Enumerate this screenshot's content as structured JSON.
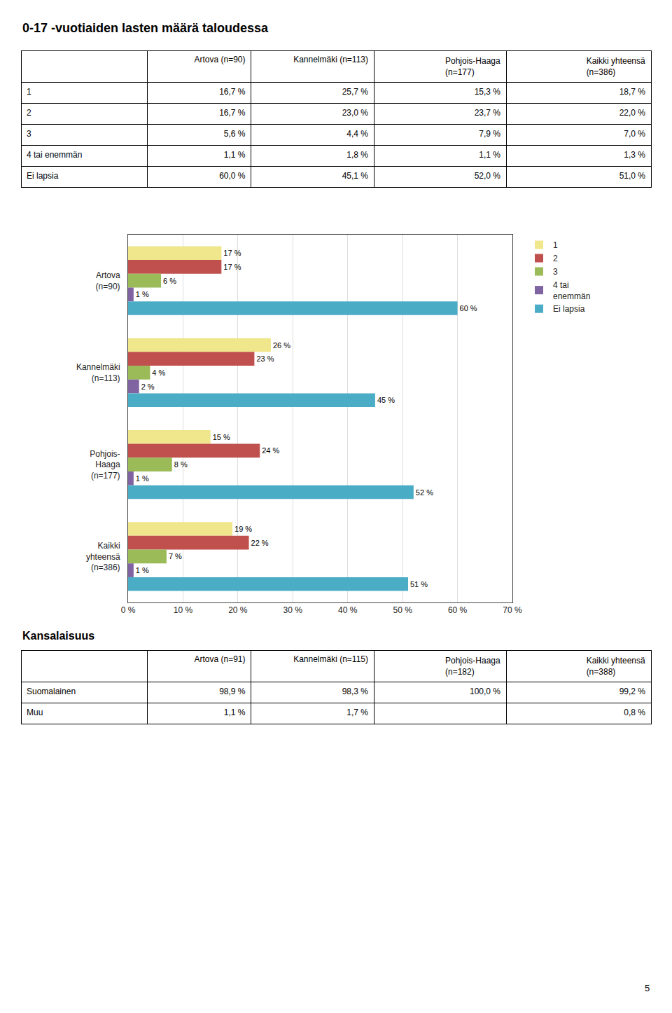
{
  "chart_data": [
    {
      "type": "table",
      "title": "0-17 -vuotiaiden lasten määrä taloudessa",
      "categories": [
        "1",
        "2",
        "3",
        "4 tai enemmän",
        "Ei lapsia"
      ],
      "series": [
        {
          "name": "Artova (n=90)",
          "values": [
            16.7,
            16.7,
            5.6,
            1.1,
            60.0
          ],
          "value_labels": [
            "16,7 %",
            "16,7 %",
            "5,6 %",
            "1,1 %",
            "60,0 %"
          ]
        },
        {
          "name": "Kannelmäki (n=113)",
          "values": [
            25.7,
            23.0,
            4.4,
            1.8,
            45.1
          ],
          "value_labels": [
            "25,7 %",
            "23,0 %",
            "4,4 %",
            "1,8 %",
            "45,1 %"
          ]
        },
        {
          "name": "Pohjois-Haaga\n(n=177)",
          "values": [
            15.3,
            23.7,
            7.9,
            1.1,
            52.0
          ],
          "value_labels": [
            "15,3 %",
            "23,7 %",
            "7,9 %",
            "1,1 %",
            "52,0 %"
          ]
        },
        {
          "name": "Kaikki yhteensä\n(n=386)",
          "values": [
            18.7,
            22.0,
            7.0,
            1.3,
            51.0
          ],
          "value_labels": [
            "18,7 %",
            "22,0 %",
            "7,0 %",
            "1,3 %",
            "51,0 %"
          ]
        }
      ]
    },
    {
      "type": "bar",
      "orientation": "horizontal",
      "categories": [
        "Artova\n(n=90)",
        "Kannelmäki\n(n=113)",
        "Pohjois-\nHaaga\n(n=177)",
        "Kaikki\nyhteensä\n(n=386)"
      ],
      "series": [
        {
          "name": "1",
          "color": "#F0E68C",
          "values": [
            17,
            26,
            15,
            19
          ],
          "value_labels": [
            "17 %",
            "26 %",
            "15 %",
            "19 %"
          ]
        },
        {
          "name": "2",
          "color": "#C0504D",
          "values": [
            17,
            23,
            24,
            22
          ],
          "value_labels": [
            "17 %",
            "23 %",
            "24 %",
            "22 %"
          ]
        },
        {
          "name": "3",
          "color": "#9BBB59",
          "values": [
            6,
            4,
            8,
            7
          ],
          "value_labels": [
            "6 %",
            "4 %",
            "8 %",
            "7 %"
          ]
        },
        {
          "name": "4 tai\nenemmän",
          "color": "#8064A2",
          "values": [
            1,
            2,
            1,
            1
          ],
          "value_labels": [
            "1 %",
            "2 %",
            "1 %",
            "1 %"
          ]
        },
        {
          "name": "Ei lapsia",
          "color": "#4BACC6",
          "values": [
            60,
            45,
            52,
            51
          ],
          "value_labels": [
            "60 %",
            "45 %",
            "52 %",
            "51 %"
          ]
        }
      ],
      "xlim": [
        0,
        70
      ],
      "xticks": [
        {
          "value": 0,
          "label": "0 %"
        },
        {
          "value": 10,
          "label": "10 %"
        },
        {
          "value": 20,
          "label": "20 %"
        },
        {
          "value": 30,
          "label": "30 %"
        },
        {
          "value": 40,
          "label": "40 %"
        },
        {
          "value": 50,
          "label": "50 %"
        },
        {
          "value": 60,
          "label": "60 %"
        },
        {
          "value": 70,
          "label": "70 %"
        }
      ],
      "grid": true,
      "data_labels": true,
      "legend": "right"
    },
    {
      "type": "table",
      "title": "Kansalaisuus",
      "categories": [
        "Suomalainen",
        "Muu"
      ],
      "series": [
        {
          "name": "Artova (n=91)",
          "values": [
            98.9,
            1.1
          ],
          "value_labels": [
            "98,9 %",
            "1,1 %"
          ]
        },
        {
          "name": "Kannelmäki (n=115)",
          "values": [
            98.3,
            1.7
          ],
          "value_labels": [
            "98,3 %",
            "1,7 %"
          ]
        },
        {
          "name": "Pohjois-Haaga\n(n=182)",
          "values": [
            100.0,
            null
          ],
          "value_labels": [
            "100,0 %",
            null
          ]
        },
        {
          "name": "Kaikki yhteensä\n(n=388)",
          "values": [
            99.2,
            0.8
          ],
          "value_labels": [
            "99,2 %",
            "0,8 %"
          ]
        }
      ],
      "annotations": [
        "5"
      ]
    }
  ]
}
